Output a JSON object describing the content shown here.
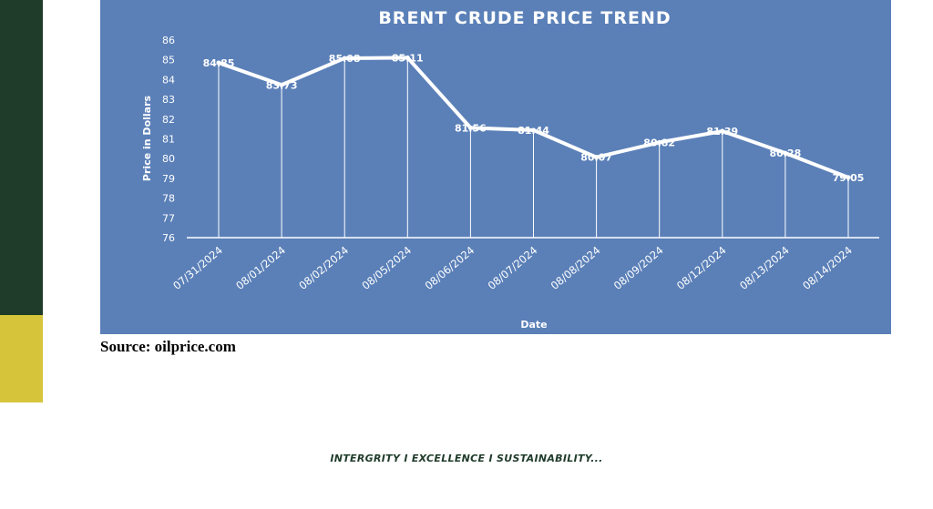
{
  "chart_data": {
    "type": "line",
    "title": "BRENT CRUDE PRICE TREND",
    "xlabel": "Date",
    "ylabel": "Price in Dollars",
    "ylim": [
      76,
      86
    ],
    "yticks": [
      "76",
      "77",
      "78",
      "79",
      "80",
      "81",
      "82",
      "83",
      "84",
      "85",
      "86"
    ],
    "categories": [
      "07/31/2024",
      "08/01/2024",
      "08/02/2024",
      "08/05/2024",
      "08/06/2024",
      "08/07/2024",
      "08/08/2024",
      "08/09/2024",
      "08/12/2024",
      "08/13/2024",
      "08/14/2024"
    ],
    "values": [
      84.85,
      83.73,
      85.08,
      85.11,
      81.56,
      81.44,
      80.07,
      80.82,
      81.39,
      80.28,
      79.05
    ],
    "data_labels": [
      "84.85",
      "83.73",
      "85.08",
      "85.11",
      "81.56",
      "81.44",
      "80.07",
      "80.82",
      "81.39",
      "80.28",
      "79.05"
    ],
    "grid": false,
    "colors": {
      "background": "#5b80b8",
      "line": "#ffffff",
      "text": "#ffffff"
    }
  },
  "source_text": "Source: oilprice.com",
  "footer_text": "INTERGRITY I EXCELLENCE I SUSTAINABILITY...",
  "colors": {
    "sidebar_green": "#1f3b2a",
    "sidebar_yellow": "#d6c53a"
  }
}
